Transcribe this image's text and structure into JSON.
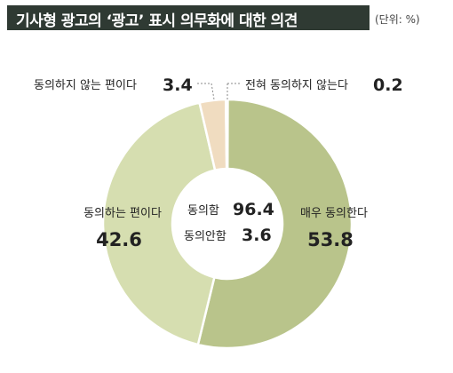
{
  "header": {
    "title": "기사형 광고의 ‘광고’ 표시 의무화에 대한 의견",
    "unit": "(단위: %)"
  },
  "colors": {
    "header_bg": "#2f3a33",
    "strongly_agree": "#b9c48b",
    "agree": "#d6deb0",
    "disagree": "#f0dcc0",
    "strongly_disagree": "#f3e4cc",
    "slice_border": "#ffffff"
  },
  "chart_data": {
    "type": "pie",
    "style": "donut",
    "title": "기사형 광고의 ‘광고’ 표시 의무화에 대한 의견",
    "unit": "(단위: %)",
    "slices": [
      {
        "label": "매우 동의한다",
        "value": 53.8
      },
      {
        "label": "동의하는 편이다",
        "value": 42.6
      },
      {
        "label": "동의하지 않는 편이다",
        "value": 3.4
      },
      {
        "label": "전혀 동의하지 않는다",
        "value": 0.2
      }
    ],
    "center": [
      {
        "label": "동의함",
        "value": 96.4
      },
      {
        "label": "동의안함",
        "value": 3.6
      }
    ]
  }
}
